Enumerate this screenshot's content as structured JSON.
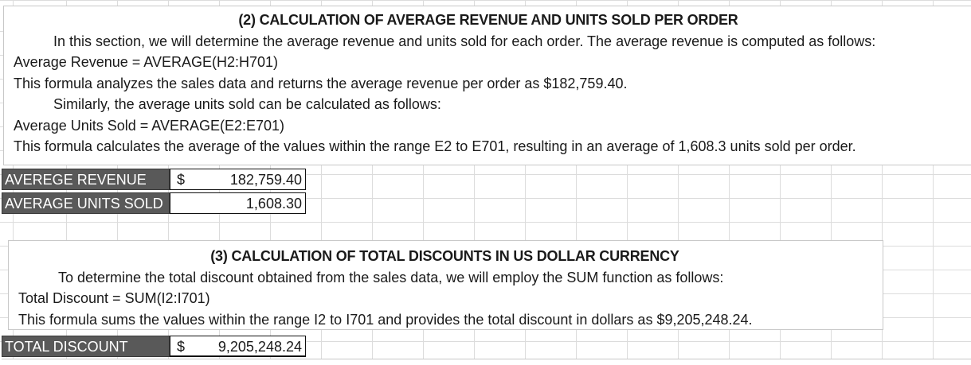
{
  "section2": {
    "title": "(2) CALCULATION OF AVERAGE REVENUE AND UNITS SOLD PER ORDER",
    "lines": [
      "In this section, we will determine the average revenue and units sold for each order. The average revenue is computed as follows:",
      "Average Revenue = AVERAGE(H2:H701)",
      "This formula analyzes the sales data and returns the average revenue per order as $182,759.40.",
      "Similarly, the average units sold can be calculated as follows:",
      "Average Units Sold = AVERAGE(E2:E701)",
      "This formula calculates the average of the values within the range E2 to E701, resulting in an average of 1,608.3 units sold per order."
    ]
  },
  "summary": {
    "avg_revenue_label": "AVEREGE REVENUE",
    "avg_revenue_currency": "$",
    "avg_revenue_value": "182,759.40",
    "avg_units_label": "AVERAGE UNITS SOLD",
    "avg_units_value": "1,608.30"
  },
  "section3": {
    "title": "(3) CALCULATION OF TOTAL DISCOUNTS IN US DOLLAR CURRENCY",
    "lines": [
      "To determine the total discount obtained from the sales data, we will employ the SUM function as follows:",
      "Total Discount = SUM(I2:I701)",
      "This formula sums the values within the range I2 to I701 and provides the total discount in dollars as $9,205,248.24."
    ]
  },
  "discount": {
    "label": "TOTAL DISCOUNT",
    "currency": "$",
    "value": "9,205,248.24"
  }
}
